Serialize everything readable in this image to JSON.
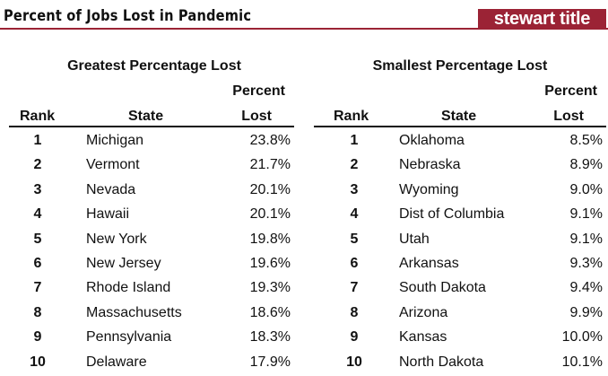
{
  "title": "Percent of Jobs Lost in Pandemic",
  "logo_text": "stewart title",
  "brand_color": "#9b2335",
  "tables": [
    {
      "caption": "Greatest Percentage Lost",
      "headers": {
        "rank": "Rank",
        "state": "State",
        "percent_line1": "Percent",
        "percent_line2": "Lost"
      },
      "rows": [
        {
          "rank": "1",
          "state": "Michigan",
          "percent": "23.8%"
        },
        {
          "rank": "2",
          "state": "Vermont",
          "percent": "21.7%"
        },
        {
          "rank": "3",
          "state": "Nevada",
          "percent": "20.1%"
        },
        {
          "rank": "4",
          "state": "Hawaii",
          "percent": "20.1%"
        },
        {
          "rank": "5",
          "state": "New York",
          "percent": "19.8%"
        },
        {
          "rank": "6",
          "state": "New Jersey",
          "percent": "19.6%"
        },
        {
          "rank": "7",
          "state": "Rhode Island",
          "percent": "19.3%"
        },
        {
          "rank": "8",
          "state": "Massachusetts",
          "percent": "18.6%"
        },
        {
          "rank": "9",
          "state": "Pennsylvania",
          "percent": "18.3%"
        },
        {
          "rank": "10",
          "state": "Delaware",
          "percent": "17.9%"
        }
      ]
    },
    {
      "caption": "Smallest Percentage Lost",
      "headers": {
        "rank": "Rank",
        "state": "State",
        "percent_line1": "Percent",
        "percent_line2": "Lost"
      },
      "rows": [
        {
          "rank": "1",
          "state": "Oklahoma",
          "percent": "8.5%"
        },
        {
          "rank": "2",
          "state": "Nebraska",
          "percent": "8.9%"
        },
        {
          "rank": "3",
          "state": "Wyoming",
          "percent": "9.0%"
        },
        {
          "rank": "4",
          "state": "Dist of Columbia",
          "percent": "9.1%"
        },
        {
          "rank": "5",
          "state": "Utah",
          "percent": "9.1%"
        },
        {
          "rank": "6",
          "state": "Arkansas",
          "percent": "9.3%"
        },
        {
          "rank": "7",
          "state": "South Dakota",
          "percent": "9.4%"
        },
        {
          "rank": "8",
          "state": "Arizona",
          "percent": "9.9%"
        },
        {
          "rank": "9",
          "state": "Kansas",
          "percent": "10.0%"
        },
        {
          "rank": "10",
          "state": "North Dakota",
          "percent": "10.1%"
        }
      ]
    }
  ]
}
